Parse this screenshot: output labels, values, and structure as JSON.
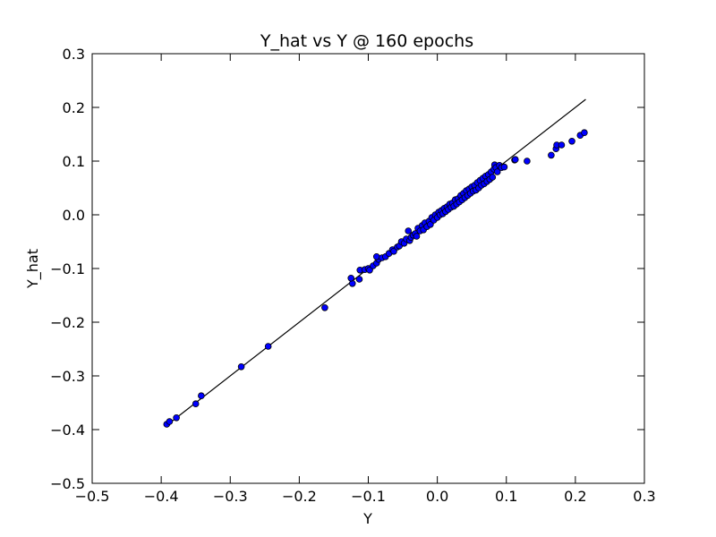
{
  "chart_data": {
    "type": "scatter",
    "title": "Y_hat vs Y @ 160 epochs",
    "xlabel": "Y",
    "ylabel": "Y_hat",
    "xlim": [
      -0.5,
      0.3
    ],
    "ylim": [
      -0.5,
      0.3
    ],
    "xticks": [
      -0.5,
      -0.4,
      -0.3,
      -0.2,
      -0.1,
      0.0,
      0.1,
      0.2,
      0.3
    ],
    "yticks": [
      -0.5,
      -0.4,
      -0.3,
      -0.2,
      -0.1,
      0.0,
      0.1,
      0.2,
      0.3
    ],
    "xtick_labels": [
      "−0.5",
      "−0.4",
      "−0.3",
      "−0.2",
      "−0.1",
      "0.0",
      "0.1",
      "0.2",
      "0.3"
    ],
    "ytick_labels": [
      "−0.5",
      "−0.4",
      "−0.3",
      "−0.2",
      "−0.1",
      "0.0",
      "0.1",
      "0.2",
      "0.3"
    ],
    "grid": false,
    "point_color": "#0000ff",
    "line_color": "#000000",
    "reference_line": {
      "x": [
        -0.39,
        0.215
      ],
      "y": [
        -0.39,
        0.215
      ]
    },
    "points": [
      [
        -0.392,
        -0.39
      ],
      [
        -0.388,
        -0.385
      ],
      [
        -0.378,
        -0.378
      ],
      [
        -0.35,
        -0.352
      ],
      [
        -0.342,
        -0.337
      ],
      [
        -0.284,
        -0.283
      ],
      [
        -0.245,
        -0.245
      ],
      [
        -0.163,
        -0.173
      ],
      [
        -0.123,
        -0.128
      ],
      [
        -0.125,
        -0.118
      ],
      [
        -0.113,
        -0.12
      ],
      [
        -0.112,
        -0.103
      ],
      [
        -0.105,
        -0.102
      ],
      [
        -0.1,
        -0.1
      ],
      [
        -0.098,
        -0.103
      ],
      [
        -0.093,
        -0.095
      ],
      [
        -0.088,
        -0.09
      ],
      [
        -0.085,
        -0.083
      ],
      [
        -0.088,
        -0.078
      ],
      [
        -0.08,
        -0.08
      ],
      [
        -0.075,
        -0.078
      ],
      [
        -0.07,
        -0.072
      ],
      [
        -0.065,
        -0.065
      ],
      [
        -0.063,
        -0.068
      ],
      [
        -0.058,
        -0.06
      ],
      [
        -0.055,
        -0.058
      ],
      [
        -0.052,
        -0.05
      ],
      [
        -0.048,
        -0.053
      ],
      [
        -0.045,
        -0.045
      ],
      [
        -0.042,
        -0.03
      ],
      [
        -0.04,
        -0.048
      ],
      [
        -0.038,
        -0.042
      ],
      [
        -0.035,
        -0.038
      ],
      [
        -0.032,
        -0.035
      ],
      [
        -0.03,
        -0.04
      ],
      [
        -0.028,
        -0.025
      ],
      [
        -0.025,
        -0.03
      ],
      [
        -0.022,
        -0.02
      ],
      [
        -0.02,
        -0.028
      ],
      [
        -0.018,
        -0.015
      ],
      [
        -0.015,
        -0.022
      ],
      [
        -0.012,
        -0.012
      ],
      [
        -0.01,
        -0.018
      ],
      [
        -0.008,
        -0.005
      ],
      [
        -0.005,
        -0.01
      ],
      [
        -0.003,
        0.0
      ],
      [
        0.0,
        -0.005
      ],
      [
        0.002,
        0.005
      ],
      [
        0.004,
        0.0
      ],
      [
        0.006,
        0.008
      ],
      [
        0.008,
        0.002
      ],
      [
        0.01,
        0.012
      ],
      [
        0.012,
        0.006
      ],
      [
        0.014,
        0.015
      ],
      [
        0.016,
        0.01
      ],
      [
        0.018,
        0.02
      ],
      [
        0.02,
        0.014
      ],
      [
        0.022,
        0.022
      ],
      [
        0.024,
        0.016
      ],
      [
        0.026,
        0.028
      ],
      [
        0.028,
        0.02
      ],
      [
        0.03,
        0.03
      ],
      [
        0.032,
        0.024
      ],
      [
        0.034,
        0.036
      ],
      [
        0.036,
        0.028
      ],
      [
        0.038,
        0.04
      ],
      [
        0.04,
        0.032
      ],
      [
        0.042,
        0.045
      ],
      [
        0.044,
        0.036
      ],
      [
        0.046,
        0.048
      ],
      [
        0.048,
        0.04
      ],
      [
        0.05,
        0.052
      ],
      [
        0.052,
        0.044
      ],
      [
        0.054,
        0.055
      ],
      [
        0.056,
        0.046
      ],
      [
        0.058,
        0.06
      ],
      [
        0.06,
        0.05
      ],
      [
        0.062,
        0.064
      ],
      [
        0.064,
        0.055
      ],
      [
        0.066,
        0.068
      ],
      [
        0.068,
        0.058
      ],
      [
        0.07,
        0.072
      ],
      [
        0.072,
        0.062
      ],
      [
        0.074,
        0.075
      ],
      [
        0.076,
        0.066
      ],
      [
        0.078,
        0.08
      ],
      [
        0.08,
        0.07
      ],
      [
        0.082,
        0.085
      ],
      [
        0.083,
        0.093
      ],
      [
        0.085,
        0.088
      ],
      [
        0.087,
        0.08
      ],
      [
        0.09,
        0.092
      ],
      [
        0.093,
        0.088
      ],
      [
        0.097,
        0.089
      ],
      [
        0.112,
        0.102
      ],
      [
        0.113,
        0.103
      ],
      [
        0.13,
        0.1
      ],
      [
        0.165,
        0.111
      ],
      [
        0.172,
        0.123
      ],
      [
        0.173,
        0.13
      ],
      [
        0.18,
        0.13
      ],
      [
        0.195,
        0.137
      ],
      [
        0.207,
        0.148
      ],
      [
        0.213,
        0.153
      ]
    ]
  }
}
